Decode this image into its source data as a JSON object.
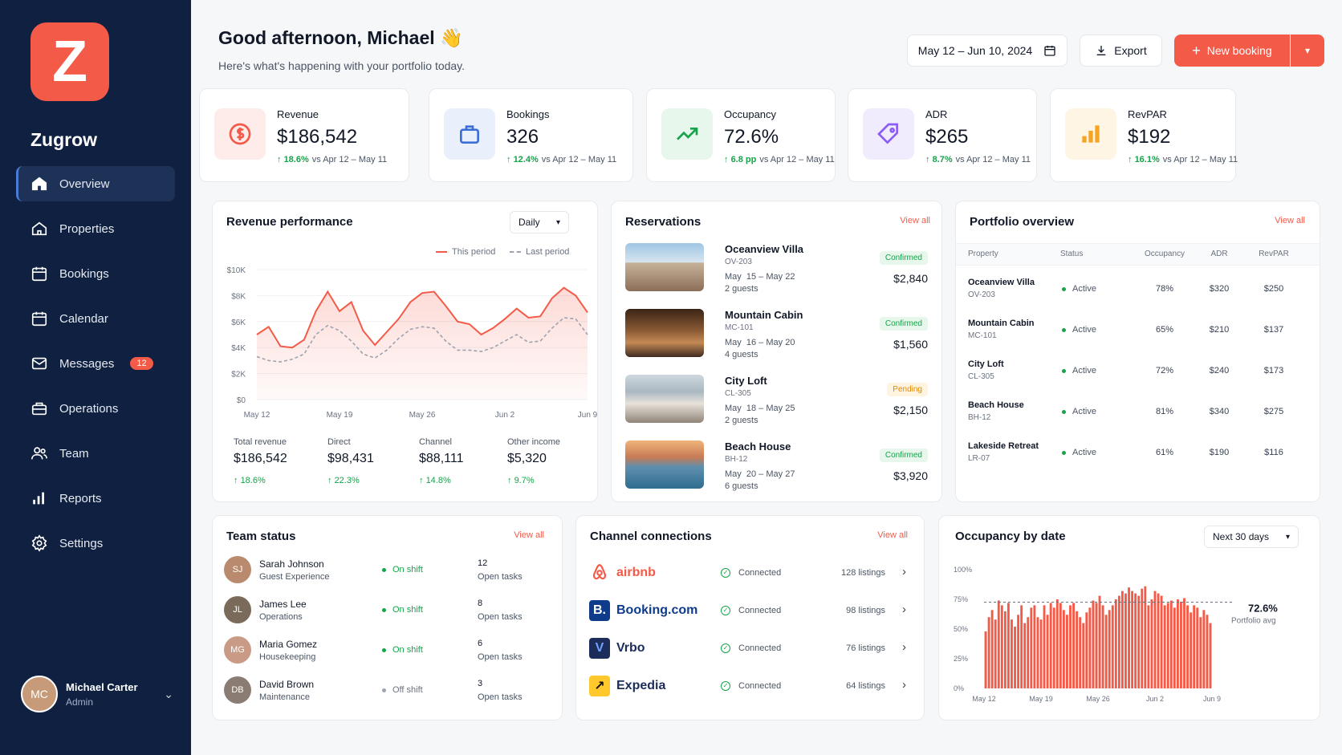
{
  "app": {
    "logo_letter": "Z",
    "name": "Zugrow"
  },
  "nav": [
    {
      "label": "Overview",
      "icon": "home-icon"
    },
    {
      "label": "Properties",
      "icon": "building-icon"
    },
    {
      "label": "Bookings",
      "icon": "calendar-icon"
    },
    {
      "label": "Calendar",
      "icon": "calendar-icon"
    },
    {
      "label": "Messages",
      "icon": "mail-icon",
      "badge": "12"
    },
    {
      "label": "Operations",
      "icon": "briefcase-icon"
    },
    {
      "label": "Team",
      "icon": "users-icon"
    },
    {
      "label": "Reports",
      "icon": "bar-chart-icon"
    },
    {
      "label": "Settings",
      "icon": "gear-icon"
    }
  ],
  "user": {
    "name": "Michael Carter",
    "role": "Admin",
    "initials": "MC"
  },
  "header": {
    "greeting": "Good afternoon, Michael 👋",
    "subtitle": "Here's what's happening with your portfolio today.",
    "date_range": "May 12 – Jun 10, 2024",
    "export": "Export",
    "new_booking": "New booking"
  },
  "kpis": [
    {
      "label": "Revenue",
      "value": "$186,542",
      "delta": "18.6%",
      "compare": "vs Apr 12 – May 11",
      "color": "#f45a48",
      "bg": "#fdecea"
    },
    {
      "label": "Bookings",
      "value": "326",
      "delta": "12.4%",
      "compare": "vs Apr 12 – May 11",
      "color": "#3b6fd6",
      "bg": "#e9f0fc"
    },
    {
      "label": "Occupancy",
      "value": "72.6%",
      "delta": "6.8 pp",
      "compare": "vs Apr 12 – May 11",
      "color": "#16a34a",
      "bg": "#e7f7ec"
    },
    {
      "label": "ADR",
      "value": "$265",
      "delta": "8.7%",
      "compare": "vs Apr 12 – May 11",
      "color": "#8b5cf6",
      "bg": "#f1ecfd"
    },
    {
      "label": "RevPAR",
      "value": "$192",
      "delta": "16.1%",
      "compare": "vs Apr 12 – May 11",
      "color": "#f5a524",
      "bg": "#fef5e4"
    }
  ],
  "revenue": {
    "title": "Revenue performance",
    "period": "Daily",
    "legend_this": "This period",
    "legend_last": "Last period",
    "totals": [
      {
        "label": "Total revenue",
        "value": "$186,542",
        "delta": "18.6%"
      },
      {
        "label": "Direct",
        "value": "$98,431",
        "delta": "22.3%"
      },
      {
        "label": "Channel",
        "value": "$88,111",
        "delta": "14.8%"
      },
      {
        "label": "Other income",
        "value": "$5,320",
        "delta": "9.7%"
      }
    ]
  },
  "chart_data": [
    {
      "type": "area",
      "x": [
        "May 12",
        "May 13",
        "May 14",
        "May 15",
        "May 16",
        "May 17",
        "May 18",
        "May 19",
        "May 20",
        "May 21",
        "May 22",
        "May 23",
        "May 24",
        "May 25",
        "May 26",
        "May 27",
        "May 28",
        "May 29",
        "May 30",
        "May 31",
        "Jun 1",
        "Jun 2",
        "Jun 3",
        "Jun 4",
        "Jun 5",
        "Jun 6",
        "Jun 7",
        "Jun 8",
        "Jun 9"
      ],
      "x_ticks": [
        "May 12",
        "May 19",
        "May 26",
        "Jun 2",
        "Jun 9"
      ],
      "y_ticks": [
        "$0",
        "$2K",
        "$4K",
        "$6K",
        "$8K",
        "$10K"
      ],
      "ylim": [
        0,
        10000
      ],
      "series": [
        {
          "name": "This period",
          "values": [
            5000,
            5600,
            4100,
            4000,
            4600,
            6800,
            8300,
            6800,
            7500,
            5300,
            4200,
            5200,
            6200,
            7500,
            8200,
            8300,
            7200,
            6000,
            5800,
            5000,
            5500,
            6200,
            7000,
            6300,
            6400,
            7800,
            8600,
            8000,
            6700
          ]
        },
        {
          "name": "Last period",
          "values": [
            3300,
            3000,
            2900,
            3100,
            3500,
            5000,
            5700,
            5300,
            4500,
            3500,
            3200,
            3800,
            4700,
            5400,
            5600,
            5500,
            4500,
            3800,
            3800,
            3700,
            4000,
            4500,
            5000,
            4400,
            4500,
            5500,
            6300,
            6200,
            5000
          ]
        }
      ]
    },
    {
      "type": "bar",
      "x_ticks": [
        "May 12",
        "May 19",
        "May 26",
        "Jun 2",
        "Jun 9"
      ],
      "y_ticks": [
        "0%",
        "25%",
        "50%",
        "75%",
        "100%"
      ],
      "ylim": [
        0,
        100
      ],
      "reference": {
        "value": 72.6,
        "label": "72.6%",
        "sublabel": "Portfolio avg"
      },
      "values": [
        48,
        60,
        66,
        58,
        74,
        70,
        65,
        72,
        58,
        52,
        62,
        70,
        55,
        60,
        68,
        70,
        60,
        58,
        70,
        62,
        72,
        68,
        75,
        72,
        66,
        62,
        70,
        72,
        65,
        60,
        55,
        64,
        68,
        74,
        72,
        78,
        70,
        62,
        66,
        70,
        75,
        78,
        82,
        80,
        85,
        82,
        80,
        78,
        84,
        86,
        70,
        75,
        82,
        80,
        78,
        70,
        72,
        74,
        68,
        75,
        73,
        76,
        70,
        64,
        70,
        68,
        60,
        66,
        62,
        55
      ]
    }
  ],
  "reservations": {
    "title": "Reservations",
    "view_all": "View all",
    "items": [
      {
        "name": "Oceanview Villa",
        "code": "OV-203",
        "dates": "May  15 – May 22",
        "guests": "2 guests",
        "status": "Confirmed",
        "price": "$2,840"
      },
      {
        "name": "Mountain Cabin",
        "code": "MC-101",
        "dates": "May  16 – May 20",
        "guests": "4 guests",
        "status": "Confirmed",
        "price": "$1,560"
      },
      {
        "name": "City Loft",
        "code": "CL-305",
        "dates": "May  18 – May 25",
        "guests": "2 guests",
        "status": "Pending",
        "price": "$2,150"
      },
      {
        "name": "Beach House",
        "code": "BH-12",
        "dates": "May  20 – May 27",
        "guests": "6 guests",
        "status": "Confirmed",
        "price": "$3,920"
      }
    ]
  },
  "portfolio": {
    "title": "Portfolio overview",
    "view_all": "View all",
    "columns": [
      "Property",
      "Status",
      "Occupancy",
      "ADR",
      "RevPAR"
    ],
    "rows": [
      {
        "name": "Oceanview Villa",
        "code": "OV-203",
        "status": "Active",
        "occ": "78%",
        "adr": "$320",
        "revpar": "$250"
      },
      {
        "name": "Mountain Cabin",
        "code": "MC-101",
        "status": "Active",
        "occ": "65%",
        "adr": "$210",
        "revpar": "$137"
      },
      {
        "name": "City Loft",
        "code": "CL-305",
        "status": "Active",
        "occ": "72%",
        "adr": "$240",
        "revpar": "$173"
      },
      {
        "name": "Beach House",
        "code": "BH-12",
        "status": "Active",
        "occ": "81%",
        "adr": "$340",
        "revpar": "$275"
      },
      {
        "name": "Lakeside Retreat",
        "code": "LR-07",
        "status": "Active",
        "occ": "61%",
        "adr": "$190",
        "revpar": "$116"
      }
    ]
  },
  "team": {
    "title": "Team status",
    "view_all": "View all",
    "members": [
      {
        "name": "Sarah Johnson",
        "role": "Guest Experience",
        "shift": "On shift",
        "tasks": "12",
        "tasks_label": "Open tasks",
        "initials": "SJ"
      },
      {
        "name": "James Lee",
        "role": "Operations",
        "shift": "On shift",
        "tasks": "8",
        "tasks_label": "Open tasks",
        "initials": "JL"
      },
      {
        "name": "Maria Gomez",
        "role": "Housekeeping",
        "shift": "On shift",
        "tasks": "6",
        "tasks_label": "Open tasks",
        "initials": "MG"
      },
      {
        "name": "David Brown",
        "role": "Maintenance",
        "shift": "Off shift",
        "tasks": "3",
        "tasks_label": "Open tasks",
        "initials": "DB"
      }
    ]
  },
  "channels": {
    "title": "Channel connections",
    "view_all": "View all",
    "items": [
      {
        "name": "airbnb",
        "status": "Connected",
        "listings": "128 listings"
      },
      {
        "name": "Booking.com",
        "status": "Connected",
        "listings": "98 listings"
      },
      {
        "name": "Vrbo",
        "status": "Connected",
        "listings": "76 listings"
      },
      {
        "name": "Expedia",
        "status": "Connected",
        "listings": "64 listings"
      }
    ]
  },
  "occupancy": {
    "title": "Occupancy by date",
    "range": "Next 30 days"
  }
}
